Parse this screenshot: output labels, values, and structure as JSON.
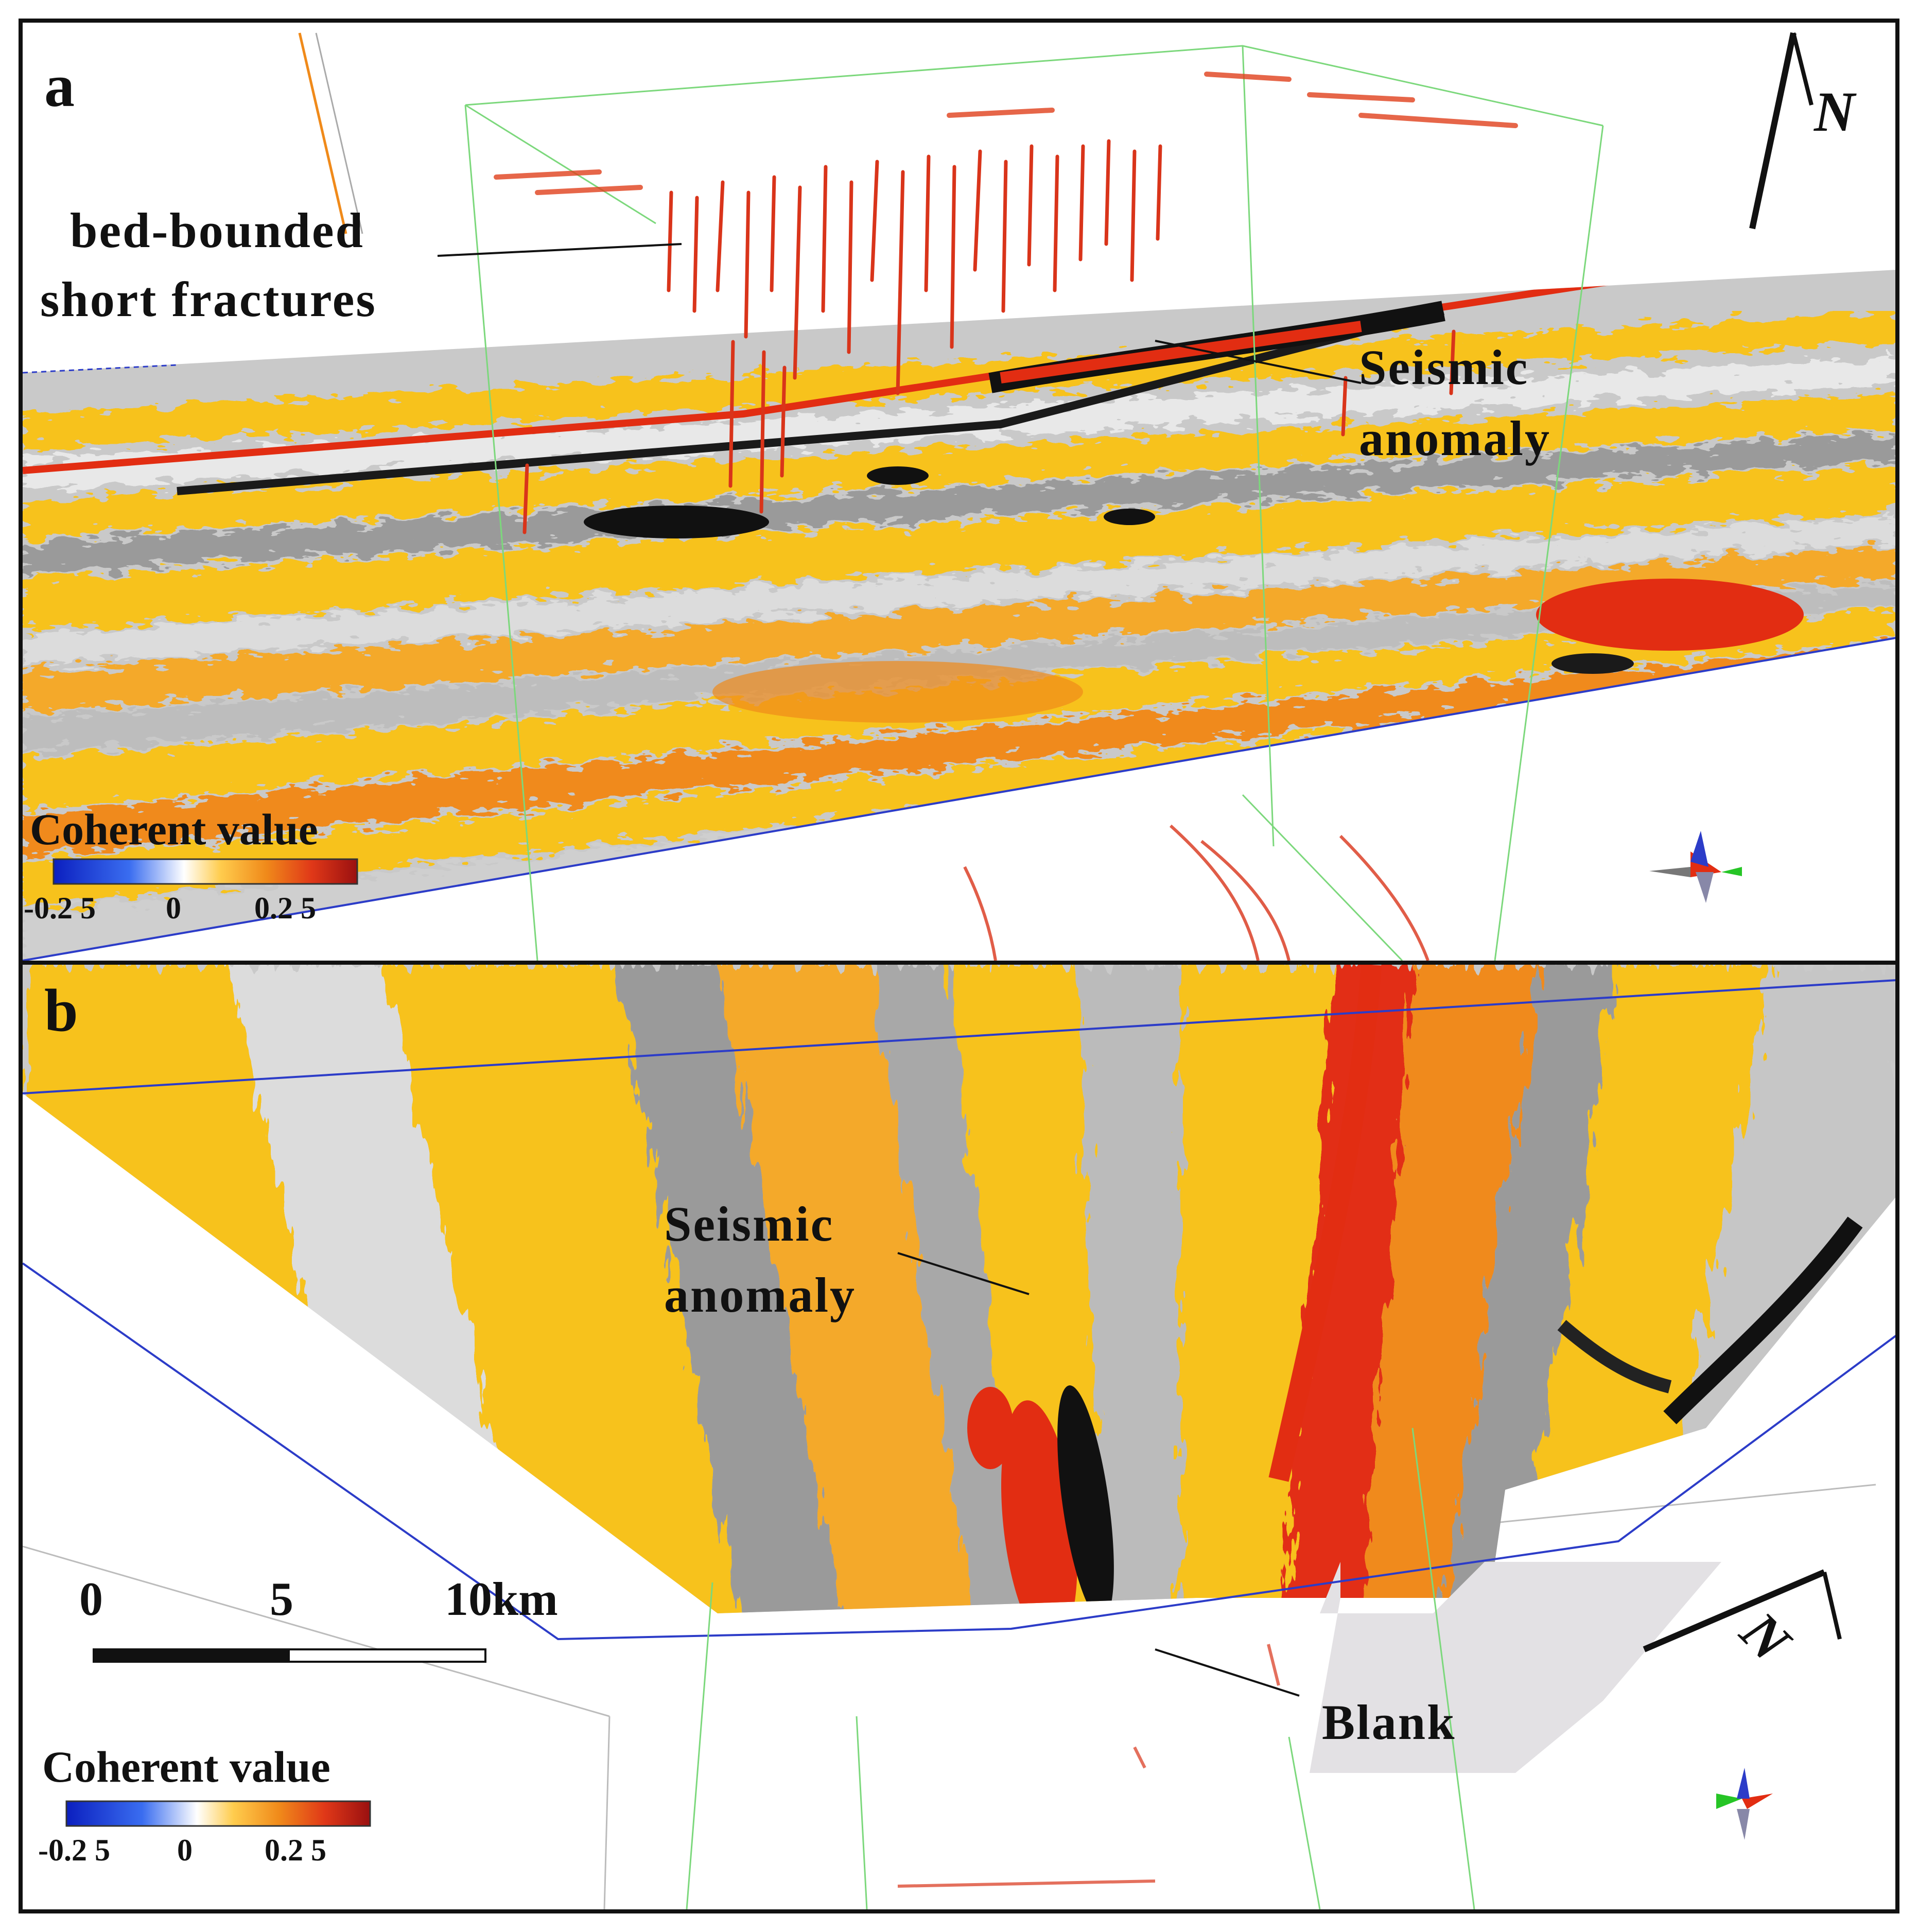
{
  "panel_a": {
    "letter": "a",
    "annotation_fractures_line1": "bed-bounded",
    "annotation_fractures_line2": "short fractures",
    "annotation_anomaly_line1": "Seismic",
    "annotation_anomaly_line2": "anomaly",
    "north_label": "N",
    "legend": {
      "title": "Coherent value",
      "tick_min": "-0.2 5",
      "tick_mid": "0",
      "tick_max": "0.2 5"
    }
  },
  "panel_b": {
    "letter": "b",
    "annotation_anomaly_line1": "Seismic",
    "annotation_anomaly_line2": "anomaly",
    "annotation_blank": "Blank",
    "north_label": "N",
    "scale": {
      "label_0": "0",
      "label_5": "5",
      "label_10": "10km"
    },
    "legend": {
      "title": "Coherent value",
      "tick_min": "-0.2 5",
      "tick_mid": "0",
      "tick_max": "0.2 5"
    }
  },
  "colors": {
    "colormap": [
      "#0b1fbf",
      "#3a6df0",
      "#a8c8f5",
      "#ffffff",
      "#ffcc4d",
      "#f08a1a",
      "#e03818",
      "#9a1010"
    ],
    "surface_gray": "#b8b8b8",
    "surface_yellow": "#f7c21e",
    "surface_orange": "#f08a1a",
    "surface_red": "#e22d12",
    "box_green": "#7cd87c",
    "box_blue": "#2c3cc8"
  }
}
